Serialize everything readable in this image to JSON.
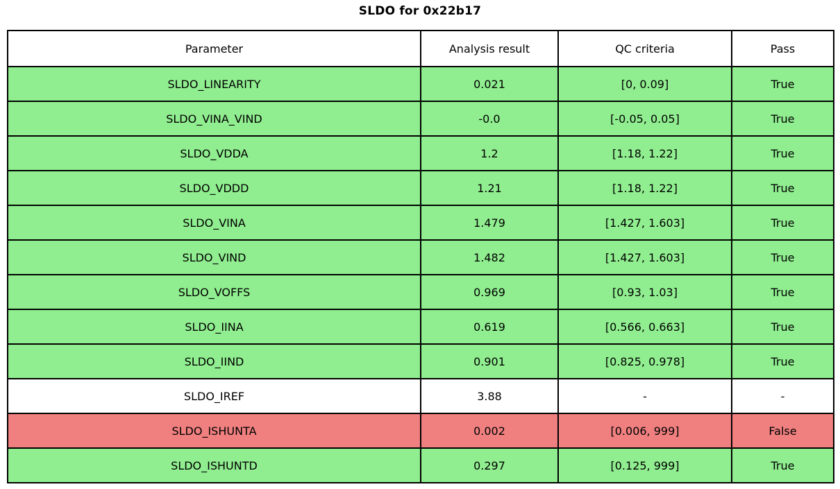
{
  "title": "SLDO for 0x22b17",
  "colors": {
    "pass_row": "#90EE90",
    "fail_row": "#F08080",
    "neutral_row": "#FFFFFF",
    "border": "#000000",
    "text": "#000000"
  },
  "table": {
    "columns": [
      "Parameter",
      "Analysis result",
      "QC criteria",
      "Pass"
    ],
    "rows": [
      {
        "parameter": "SLDO_LINEARITY",
        "result": "0.021",
        "criteria": "[0, 0.09]",
        "pass": "True",
        "status": "pass"
      },
      {
        "parameter": "SLDO_VINA_VIND",
        "result": "-0.0",
        "criteria": "[-0.05, 0.05]",
        "pass": "True",
        "status": "pass"
      },
      {
        "parameter": "SLDO_VDDA",
        "result": "1.2",
        "criteria": "[1.18, 1.22]",
        "pass": "True",
        "status": "pass"
      },
      {
        "parameter": "SLDO_VDDD",
        "result": "1.21",
        "criteria": "[1.18, 1.22]",
        "pass": "True",
        "status": "pass"
      },
      {
        "parameter": "SLDO_VINA",
        "result": "1.479",
        "criteria": "[1.427, 1.603]",
        "pass": "True",
        "status": "pass"
      },
      {
        "parameter": "SLDO_VIND",
        "result": "1.482",
        "criteria": "[1.427, 1.603]",
        "pass": "True",
        "status": "pass"
      },
      {
        "parameter": "SLDO_VOFFS",
        "result": "0.969",
        "criteria": "[0.93, 1.03]",
        "pass": "True",
        "status": "pass"
      },
      {
        "parameter": "SLDO_IINA",
        "result": "0.619",
        "criteria": "[0.566, 0.663]",
        "pass": "True",
        "status": "pass"
      },
      {
        "parameter": "SLDO_IIND",
        "result": "0.901",
        "criteria": "[0.825, 0.978]",
        "pass": "True",
        "status": "pass"
      },
      {
        "parameter": "SLDO_IREF",
        "result": "3.88",
        "criteria": "-",
        "pass": "-",
        "status": "neutral"
      },
      {
        "parameter": "SLDO_ISHUNTA",
        "result": "0.002",
        "criteria": "[0.006, 999]",
        "pass": "False",
        "status": "fail"
      },
      {
        "parameter": "SLDO_ISHUNTD",
        "result": "0.297",
        "criteria": "[0.125, 999]",
        "pass": "True",
        "status": "pass"
      }
    ]
  },
  "chart_data": {
    "type": "table",
    "title": "SLDO for 0x22b17",
    "columns": [
      "Parameter",
      "Analysis result",
      "QC criteria",
      "Pass"
    ],
    "rows": [
      [
        "SLDO_LINEARITY",
        0.021,
        "[0, 0.09]",
        "True"
      ],
      [
        "SLDO_VINA_VIND",
        -0.0,
        "[-0.05, 0.05]",
        "True"
      ],
      [
        "SLDO_VDDA",
        1.2,
        "[1.18, 1.22]",
        "True"
      ],
      [
        "SLDO_VDDD",
        1.21,
        "[1.18, 1.22]",
        "True"
      ],
      [
        "SLDO_VINA",
        1.479,
        "[1.427, 1.603]",
        "True"
      ],
      [
        "SLDO_VIND",
        1.482,
        "[1.427, 1.603]",
        "True"
      ],
      [
        "SLDO_VOFFS",
        0.969,
        "[0.93, 1.03]",
        "True"
      ],
      [
        "SLDO_IINA",
        0.619,
        "[0.566, 0.663]",
        "True"
      ],
      [
        "SLDO_IIND",
        0.901,
        "[0.825, 0.978]",
        "True"
      ],
      [
        "SLDO_IREF",
        3.88,
        "-",
        "-"
      ],
      [
        "SLDO_ISHUNTA",
        0.002,
        "[0.006, 999]",
        "False"
      ],
      [
        "SLDO_ISHUNTD",
        0.297,
        "[0.125, 999]",
        "True"
      ]
    ],
    "row_colors": [
      "#90EE90",
      "#90EE90",
      "#90EE90",
      "#90EE90",
      "#90EE90",
      "#90EE90",
      "#90EE90",
      "#90EE90",
      "#90EE90",
      "#FFFFFF",
      "#F08080",
      "#90EE90"
    ]
  }
}
